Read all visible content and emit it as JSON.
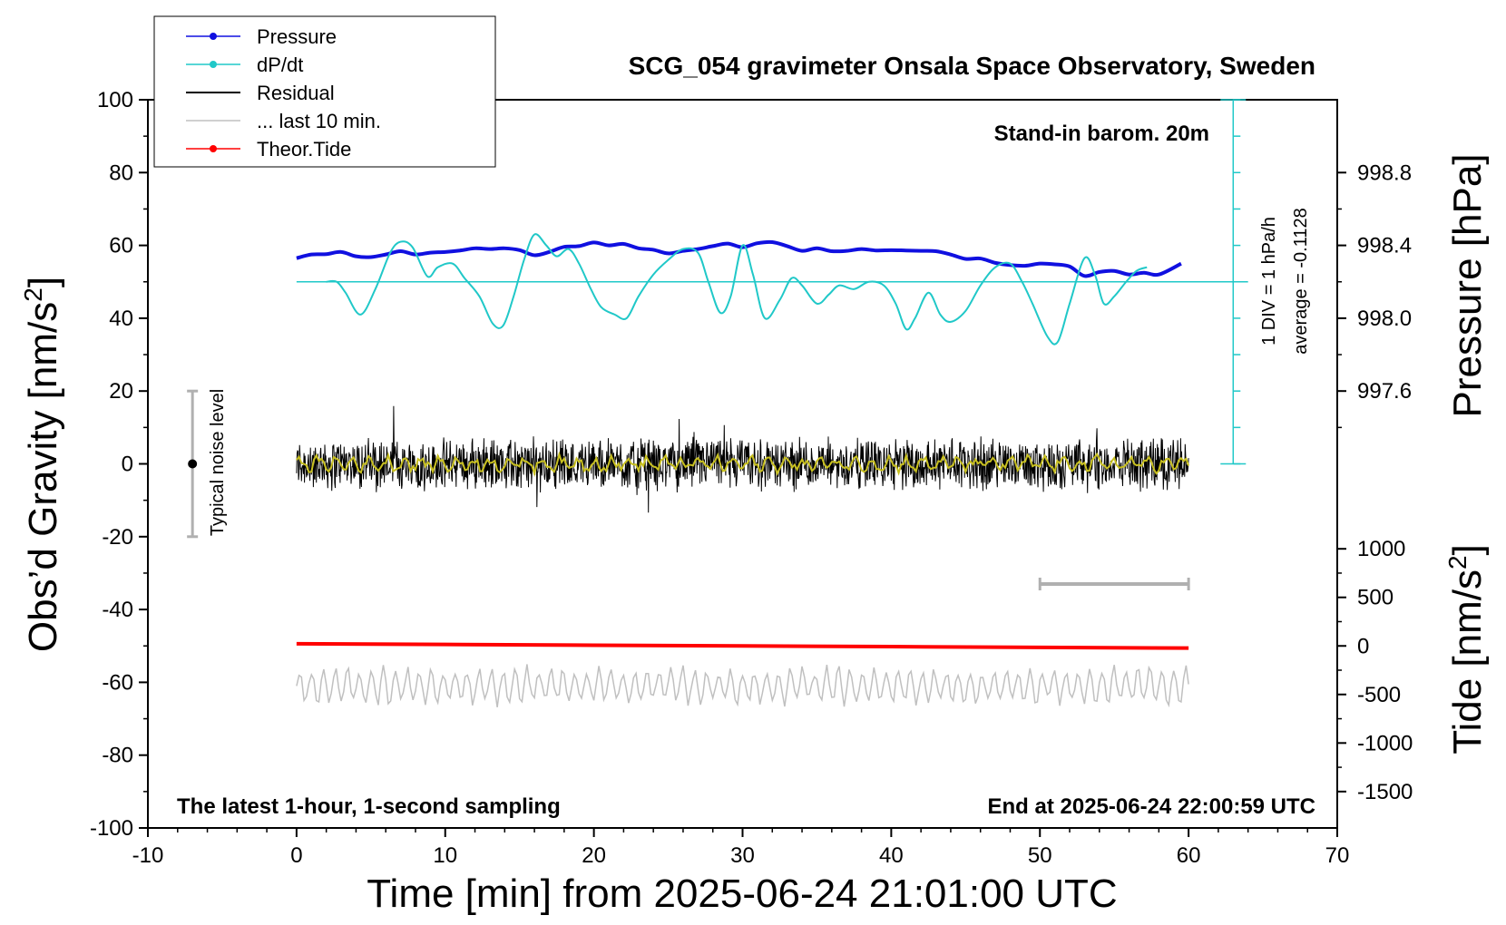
{
  "chart_data": {
    "type": "line",
    "title": "SCG_054 gravimeter Onsala Space Observatory, Sweden",
    "xlabel": "Time [min] from 2025-06-24 21:01:00 UTC",
    "ylabel_left_main": "Obs’d Gravity [nm/s",
    "ylabel_left_sup": "2",
    "ylabel_left_end": "]",
    "ylabel_right_pressure": "Pressure [hPa]",
    "ylabel_right_tide_main": "Tide [nm/s",
    "ylabel_right_tide_sup": "2",
    "ylabel_right_tide_end": "]",
    "xlim": [
      -10,
      70
    ],
    "ylim": [
      -100,
      100
    ],
    "x_ticks": [
      "-10",
      "0",
      "10",
      "20",
      "30",
      "40",
      "50",
      "60",
      "70"
    ],
    "y_ticks": [
      "100",
      "80",
      "60",
      "40",
      "20",
      "0",
      "-20",
      "-40",
      "-60",
      "-80",
      "-100"
    ],
    "pressure_ticks": [
      "998.8",
      "998.4",
      "998.0",
      "997.6"
    ],
    "tide_ticks": [
      "1000",
      "500",
      "0",
      "-500",
      "-1000",
      "-1500"
    ],
    "pressure_axis": {
      "ref_value": 998.4,
      "ref_gravity": 60,
      "hpa_per_20_gravity": 0.4
    },
    "tide_axis": {
      "ref_value": 0,
      "ref_gravity": -50,
      "tide_per_gravity": 37.5
    },
    "annotations": {
      "barometer": "Stand-in barom. 20m",
      "div_label": "1 DIV = 1 hPa/h",
      "average_label": "average = -0.1128",
      "noise_label": "Typical noise level",
      "bottom_left": "The latest 1-hour, 1-second sampling",
      "bottom_right": "End at 2025-06-24 22:00:59 UTC"
    },
    "legend": {
      "placement": "top-left",
      "items": [
        {
          "label": "Pressure",
          "color": "#1010e0",
          "marker": true
        },
        {
          "label": "dP/dt",
          "color": "#20c8c8",
          "marker": true
        },
        {
          "label": "Residual",
          "color": "#000000",
          "marker": false
        },
        {
          "label": "... last 10 min.",
          "color": "#c0c0c0",
          "marker": false
        },
        {
          "label": "Theor.Tide",
          "color": "#ff0000",
          "marker": true
        }
      ]
    },
    "series": [
      {
        "name": "Pressure",
        "color": "#1010e0",
        "x": [
          0,
          1,
          2,
          3,
          4,
          5,
          6,
          7,
          8,
          9,
          10,
          11,
          12,
          13,
          14,
          15,
          16,
          17,
          18,
          19,
          20,
          21,
          22,
          23,
          24,
          25,
          26,
          27,
          28,
          29,
          30,
          31,
          32,
          33,
          34,
          35,
          36,
          37,
          38,
          39,
          40,
          41,
          42,
          43,
          44,
          45,
          46,
          47,
          48,
          49,
          50,
          51,
          52,
          53,
          54,
          55,
          56,
          57,
          58,
          59.5
        ],
        "y": [
          56.5,
          57.5,
          57.6,
          58.2,
          57.0,
          56.8,
          57.5,
          58.4,
          57.5,
          58.0,
          58.2,
          58.6,
          59.2,
          59.0,
          59.2,
          58.7,
          57.3,
          58.2,
          59.6,
          59.8,
          60.8,
          60.0,
          60.4,
          59.2,
          58.8,
          57.8,
          58.5,
          59.0,
          59.8,
          60.5,
          59.5,
          60.6,
          60.9,
          59.8,
          58.5,
          59.2,
          58.4,
          58.5,
          59.0,
          58.6,
          58.7,
          58.6,
          58.5,
          58.4,
          57.5,
          56.3,
          56.4,
          55.2,
          54.6,
          54.4,
          55.0,
          54.8,
          54.2,
          51.6,
          52.7,
          53.0,
          52.0,
          52.5,
          52.0,
          55.0
        ]
      },
      {
        "name": "dP/dt",
        "color": "#20c8c8",
        "x": [
          2,
          2.7,
          3.3,
          4.3,
          5.3,
          6.3,
          7.0,
          7.8,
          8.8,
          9.5,
          10.5,
          11.3,
          12.3,
          13.2,
          13.9,
          14.6,
          15.3,
          16.0,
          16.8,
          17.5,
          18.3,
          19.0,
          19.8,
          20.5,
          21.4,
          22.2,
          23.0,
          24.0,
          25.0,
          26.0,
          27.0,
          27.7,
          28.5,
          29.2,
          30.0,
          30.7,
          31.5,
          32.5,
          33.3,
          34.0,
          35.0,
          35.8,
          36.5,
          37.5,
          38.5,
          39.5,
          40.3,
          41.0,
          41.6,
          42.5,
          43.3,
          44.0,
          45.0,
          46.0,
          47.0,
          48.0,
          48.8,
          49.5,
          50.5,
          51.2,
          52.0,
          53.0,
          53.7,
          54.3,
          55.0,
          55.8,
          56.5,
          57.2
        ],
        "y": [
          50.0,
          50.0,
          47.0,
          41.0,
          48.0,
          58.0,
          61.0,
          59.5,
          51.5,
          54.0,
          55.0,
          51.0,
          46.0,
          38.5,
          38.0,
          46.0,
          56.0,
          63.0,
          60.0,
          57.0,
          59.0,
          55.0,
          48.0,
          43.0,
          41.0,
          40.0,
          46.0,
          52.0,
          56.0,
          59.0,
          58.0,
          50.0,
          41.5,
          46.0,
          60.0,
          52.0,
          40.0,
          45.0,
          51.0,
          49.0,
          44.0,
          46.5,
          49.0,
          48.0,
          50.0,
          49.0,
          44.0,
          37.0,
          40.0,
          47.0,
          41.0,
          39.0,
          42.0,
          49.0,
          54.0,
          55.0,
          50.0,
          44.0,
          35.0,
          33.5,
          44.0,
          56.5,
          52.0,
          44.0,
          46.0,
          50.0,
          53.0,
          54.0
        ]
      },
      {
        "name": "Residual",
        "color": "#000000",
        "x": [
          0,
          60
        ],
        "y": [
          0,
          0
        ],
        "style": "noise band, amplitude about ±8 nm/s2 around 0"
      },
      {
        "name": "... last 10 min.",
        "color": "#c0c0c0",
        "x": [
          0,
          60
        ],
        "y": [
          -61,
          -61
        ],
        "style": "oscillation about ±5 around -61"
      },
      {
        "name": "Theor.Tide",
        "color": "#ff0000",
        "x": [
          0,
          10,
          20,
          30,
          40,
          50,
          60
        ],
        "y": [
          -49.4,
          -49.6,
          -49.8,
          -50.0,
          -50.2,
          -50.4,
          -50.6
        ]
      }
    ],
    "noise_bar": {
      "x": -7,
      "y_low": -20,
      "y_high": 20,
      "center": 0
    },
    "scale_bar": {
      "x_start": 50,
      "x_end": 60,
      "y": -33
    },
    "dpdt_axis": {
      "x": 63,
      "y_top": 100,
      "y_bottom": 0,
      "zero_level": 50
    }
  }
}
